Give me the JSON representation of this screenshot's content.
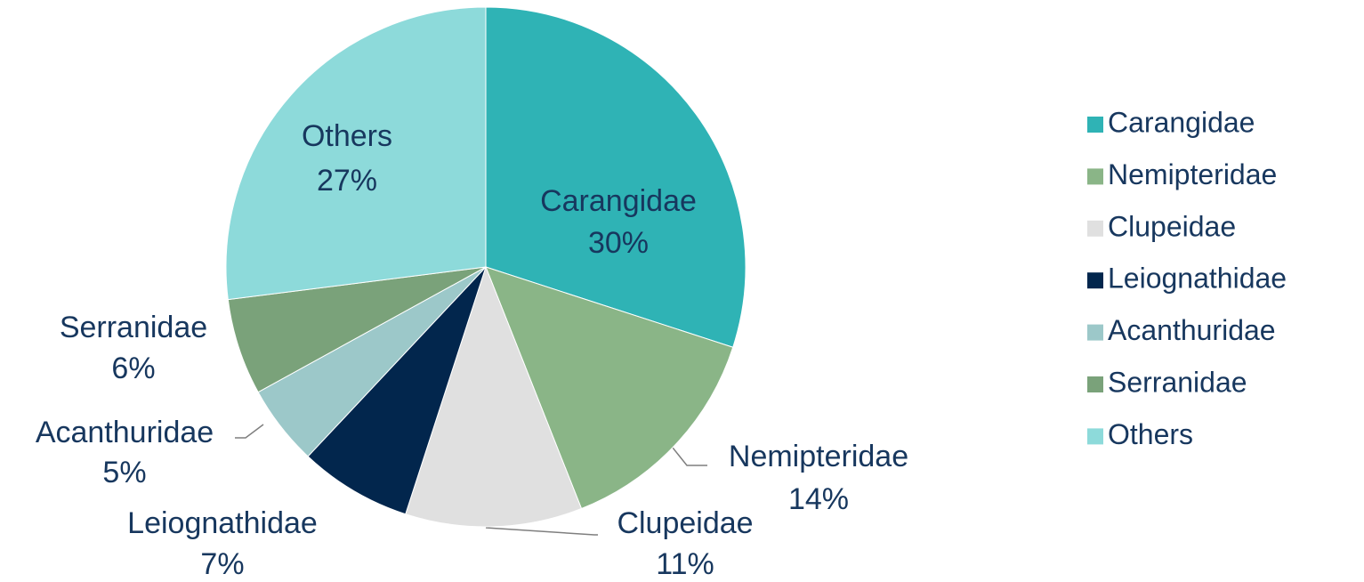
{
  "chart_data": {
    "type": "pie",
    "categories": [
      "Carangidae",
      "Nemipteridae",
      "Clupeidae",
      "Leiognathidae",
      "Acanthuridae",
      "Serranidae",
      "Others"
    ],
    "values": [
      30,
      14,
      11,
      7,
      5,
      6,
      27
    ],
    "value_labels": [
      "30%",
      "14%",
      "11%",
      "7%",
      "5%",
      "6%",
      "27%"
    ],
    "colors": [
      "#2fb3b5",
      "#8ab587",
      "#e0e0e0",
      "#02264d",
      "#9cc8c9",
      "#7aa27a",
      "#8ddada"
    ],
    "legend": "right"
  }
}
